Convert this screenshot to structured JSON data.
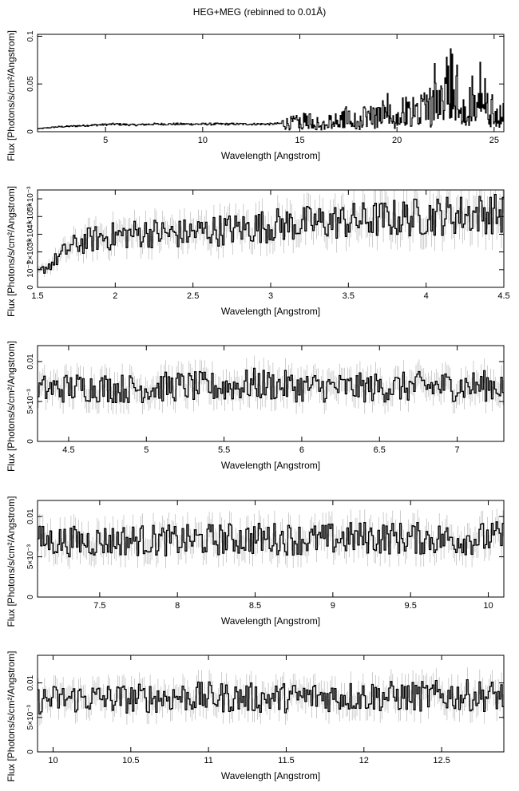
{
  "title": "HEG+MEG (rebinned to 0.01Å)",
  "chart_data": [
    {
      "type": "line",
      "xlabel": "Wavelength [Angstrom]",
      "ylabel": "Flux [Photons/s/cm²/Angstrom]",
      "xlim": [
        1.5,
        25.5
      ],
      "ylim": [
        0,
        0.102
      ],
      "xticks": [
        {
          "v": 5,
          "label": "5"
        },
        {
          "v": 10,
          "label": "10"
        },
        {
          "v": 15,
          "label": "15"
        },
        {
          "v": 20,
          "label": "20"
        },
        {
          "v": 25,
          "label": "25"
        }
      ],
      "yticks": [
        {
          "v": 0,
          "label": "0"
        },
        {
          "v": 0.05,
          "label": "0.05"
        },
        {
          "v": 0.1,
          "label": "0.1"
        }
      ],
      "grid": false,
      "series": [
        {
          "x": [
            1.5,
            2.5,
            3.5,
            4.5,
            5.5,
            6.5,
            7.5,
            8.5,
            9.5,
            10.5,
            11.5,
            12.5,
            13.5,
            14.5,
            15.0,
            15.5,
            16.0,
            16.5,
            17.0,
            17.5,
            18.0,
            18.5,
            19.0,
            19.5,
            20.0,
            20.3,
            20.7,
            21.0,
            21.2,
            21.6,
            22.0,
            22.1,
            22.4,
            22.7,
            22.8,
            22.9,
            23.0,
            23.2,
            23.5,
            23.8,
            24.2,
            24.8,
            25.2,
            25.5
          ],
          "y": [
            0.003,
            0.005,
            0.006,
            0.007,
            0.008,
            0.007,
            0.008,
            0.008,
            0.008,
            0.008,
            0.008,
            0.008,
            0.008,
            0.009,
            0.01,
            0.012,
            0.011,
            0.014,
            0.012,
            0.016,
            0.013,
            0.018,
            0.015,
            0.024,
            0.014,
            0.02,
            0.032,
            0.016,
            0.027,
            0.021,
            0.05,
            0.024,
            0.055,
            0.04,
            0.07,
            0.102,
            0.05,
            0.06,
            0.02,
            0.03,
            0.05,
            0.025,
            0.018,
            0.017
          ]
        }
      ]
    },
    {
      "type": "line",
      "xlabel": "Wavelength [Angstrom]",
      "ylabel": "Flux [Photons/s/cm²/Angstrom]",
      "xlim": [
        1.5,
        4.5
      ],
      "ylim": [
        0,
        0.0055
      ],
      "xticks": [
        {
          "v": 1.5,
          "label": "1.5"
        },
        {
          "v": 2,
          "label": "2"
        },
        {
          "v": 2.5,
          "label": "2.5"
        },
        {
          "v": 3,
          "label": "3"
        },
        {
          "v": 3.5,
          "label": "3.5"
        },
        {
          "v": 4,
          "label": "4"
        },
        {
          "v": 4.5,
          "label": "4.5"
        }
      ],
      "yticks": [
        {
          "v": 0,
          "label": "0"
        },
        {
          "v": 0.001,
          "label": "10⁻³"
        },
        {
          "v": 0.002,
          "label": "2×10⁻³"
        },
        {
          "v": 0.003,
          "label": "3×10⁻³"
        },
        {
          "v": 0.004,
          "label": "4×10⁻³"
        },
        {
          "v": 0.005,
          "label": "5×10⁻³"
        }
      ],
      "grid": false,
      "series": [
        {
          "x": [
            1.5,
            1.6,
            1.7,
            1.8,
            1.9,
            2.0,
            2.2,
            2.4,
            2.6,
            2.8,
            3.0,
            3.2,
            3.4,
            3.6,
            3.8,
            4.0,
            4.2,
            4.4,
            4.5
          ],
          "y": [
            0.0008,
            0.0014,
            0.0022,
            0.0026,
            0.0028,
            0.0029,
            0.0031,
            0.003,
            0.0032,
            0.0033,
            0.0035,
            0.0036,
            0.0037,
            0.0038,
            0.0039,
            0.004,
            0.0041,
            0.0042,
            0.0041
          ]
        }
      ]
    },
    {
      "type": "line",
      "xlabel": "Wavelength [Angstrom]",
      "ylabel": "Flux [Photons/s/cm²/Angstrom]",
      "xlim": [
        4.3,
        7.3
      ],
      "ylim": [
        0,
        0.012
      ],
      "xticks": [
        {
          "v": 4.5,
          "label": "4.5"
        },
        {
          "v": 5,
          "label": "5"
        },
        {
          "v": 5.5,
          "label": "5.5"
        },
        {
          "v": 6,
          "label": "6"
        },
        {
          "v": 6.5,
          "label": "6.5"
        },
        {
          "v": 7,
          "label": "7"
        }
      ],
      "yticks": [
        {
          "v": 0,
          "label": "0"
        },
        {
          "v": 0.005,
          "label": "5×10⁻³"
        },
        {
          "v": 0.01,
          "label": "0.01"
        }
      ],
      "grid": false,
      "series": [
        {
          "x": [
            4.3,
            4.6,
            4.9,
            5.2,
            5.5,
            5.7,
            6.0,
            6.3,
            6.6,
            6.9,
            7.3
          ],
          "y": [
            0.0065,
            0.0068,
            0.0066,
            0.0069,
            0.0068,
            0.0072,
            0.0068,
            0.0067,
            0.0068,
            0.0069,
            0.007
          ]
        }
      ]
    },
    {
      "type": "line",
      "xlabel": "Wavelength [Angstrom]",
      "ylabel": "Flux [Photons/s/cm²/Angstrom]",
      "xlim": [
        7.1,
        10.1
      ],
      "ylim": [
        0,
        0.012
      ],
      "xticks": [
        {
          "v": 7.5,
          "label": "7.5"
        },
        {
          "v": 8,
          "label": "8"
        },
        {
          "v": 8.5,
          "label": "8.5"
        },
        {
          "v": 9,
          "label": "9"
        },
        {
          "v": 9.5,
          "label": "9.5"
        },
        {
          "v": 10,
          "label": "10"
        }
      ],
      "yticks": [
        {
          "v": 0,
          "label": "0"
        },
        {
          "v": 0.005,
          "label": "5×10⁻³"
        },
        {
          "v": 0.01,
          "label": "0.01"
        }
      ],
      "grid": false,
      "series": [
        {
          "x": [
            7.1,
            7.4,
            7.7,
            8.0,
            8.3,
            8.6,
            8.9,
            9.2,
            9.5,
            9.8,
            10.1
          ],
          "y": [
            0.007,
            0.0069,
            0.0071,
            0.007,
            0.0072,
            0.0073,
            0.0071,
            0.0074,
            0.0073,
            0.0072,
            0.0074
          ]
        }
      ]
    },
    {
      "type": "line",
      "xlabel": "Wavelength [Angstrom]",
      "ylabel": "Flux [Photons/s/cm²/Angstrom]",
      "xlim": [
        9.9,
        12.9
      ],
      "ylim": [
        0,
        0.014
      ],
      "xticks": [
        {
          "v": 10,
          "label": "10"
        },
        {
          "v": 10.5,
          "label": "10.5"
        },
        {
          "v": 11,
          "label": "11"
        },
        {
          "v": 11.5,
          "label": "11.5"
        },
        {
          "v": 12,
          "label": "12"
        },
        {
          "v": 12.5,
          "label": "12.5"
        }
      ],
      "yticks": [
        {
          "v": 0,
          "label": "0"
        },
        {
          "v": 0.005,
          "label": "5×10⁻³"
        },
        {
          "v": 0.01,
          "label": "0.01"
        }
      ],
      "grid": false,
      "series": [
        {
          "x": [
            9.9,
            10.2,
            10.5,
            10.8,
            11.1,
            11.4,
            11.7,
            12.0,
            12.3,
            12.6,
            12.9
          ],
          "y": [
            0.0075,
            0.0078,
            0.0077,
            0.008,
            0.0079,
            0.0078,
            0.008,
            0.0081,
            0.008,
            0.0082,
            0.0081
          ]
        }
      ]
    }
  ]
}
